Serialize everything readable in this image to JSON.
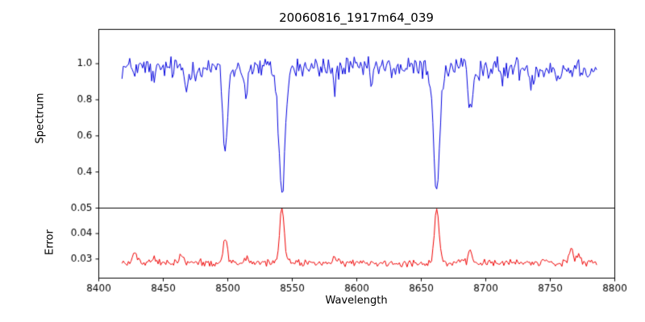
{
  "chart_data": {
    "type": "line",
    "title": "20060816_1917m64_039",
    "xlabel": "Wavelength",
    "x_range": [
      8400,
      8800
    ],
    "x_ticks": [
      8400,
      8450,
      8500,
      8550,
      8600,
      8650,
      8700,
      8750,
      8800
    ],
    "x_tick_labels": [
      "8400",
      "8450",
      "8500",
      "8550",
      "8600",
      "8650",
      "8700",
      "8750",
      "8800"
    ],
    "grid": false,
    "legend": "none",
    "noise_seed": 12345,
    "panels": [
      {
        "ylabel": "Spectrum",
        "color": "#0000dd",
        "ylim": [
          0.2,
          1.19
        ],
        "y_ticks": [
          1.0,
          0.8,
          0.6,
          0.4
        ],
        "y_tick_labels": [
          "1.0",
          "0.8",
          "0.6",
          "0.4"
        ],
        "series": {
          "x_start": 8418,
          "x_end": 8786,
          "step": 1,
          "baseline": 0.975,
          "noise_amplitude": 0.032,
          "absorption_lines": [
            {
              "center": 8443,
              "depth": 0.08,
              "sigma": 1.2
            },
            {
              "center": 8468,
              "depth": 0.12,
              "sigma": 1.3
            },
            {
              "center": 8498,
              "depth": 0.47,
              "sigma": 1.8
            },
            {
              "center": 8514,
              "depth": 0.13,
              "sigma": 1.4
            },
            {
              "center": 8542,
              "depth": 0.68,
              "sigma": 2.5
            },
            {
              "center": 8583,
              "depth": 0.1,
              "sigma": 1.2
            },
            {
              "center": 8611,
              "depth": 0.07,
              "sigma": 1.2
            },
            {
              "center": 8662,
              "depth": 0.65,
              "sigma": 2.5
            },
            {
              "center": 8688,
              "depth": 0.26,
              "sigma": 1.6
            },
            {
              "center": 8713,
              "depth": 0.07,
              "sigma": 1.2
            },
            {
              "center": 8736,
              "depth": 0.08,
              "sigma": 1.2
            },
            {
              "center": 8757,
              "depth": 0.07,
              "sigma": 1.2
            }
          ]
        }
      },
      {
        "ylabel": "Error",
        "color": "#ee0000",
        "ylim": [
          0.0225,
          0.05
        ],
        "y_ticks": [
          0.05,
          0.04,
          0.03
        ],
        "y_tick_labels": [
          "0.05",
          "0.04",
          "0.03"
        ],
        "series": {
          "x_start": 8418,
          "x_end": 8786,
          "step": 1,
          "baseline": 0.0285,
          "noise_amplitude": 0.0007,
          "emission_spikes": [
            {
              "center": 8428,
              "height": 0.0045,
              "sigma": 1.5
            },
            {
              "center": 8443,
              "height": 0.002,
              "sigma": 1.2
            },
            {
              "center": 8464,
              "height": 0.0035,
              "sigma": 1.5
            },
            {
              "center": 8498,
              "height": 0.01,
              "sigma": 1.6
            },
            {
              "center": 8514,
              "height": 0.002,
              "sigma": 1.3
            },
            {
              "center": 8542,
              "height": 0.0215,
              "sigma": 1.8
            },
            {
              "center": 8583,
              "height": 0.0015,
              "sigma": 1.2
            },
            {
              "center": 8662,
              "height": 0.0215,
              "sigma": 1.8
            },
            {
              "center": 8688,
              "height": 0.0045,
              "sigma": 1.4
            },
            {
              "center": 8747,
              "height": 0.002,
              "sigma": 1.2
            },
            {
              "center": 8766,
              "height": 0.006,
              "sigma": 1.5
            },
            {
              "center": 8772,
              "height": 0.0035,
              "sigma": 1.2
            }
          ]
        }
      }
    ]
  }
}
